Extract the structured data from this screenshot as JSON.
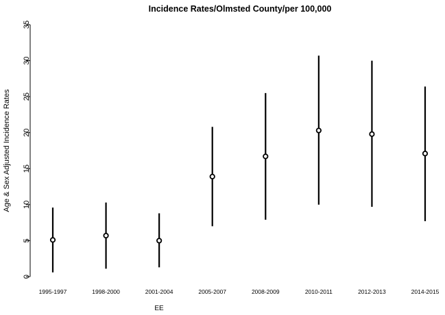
{
  "chart_data": {
    "type": "scatter",
    "title": "Incidence Rates/Olmsted County/per 100,000",
    "xlabel": "",
    "ylabel": "Age & Sex Adjusted Incidence Rates",
    "ylim": [
      0,
      35
    ],
    "yticks": [
      0,
      5,
      10,
      15,
      20,
      25,
      30,
      35
    ],
    "grid": false,
    "categories": [
      "1995-1997",
      "1998-2000",
      "2001-2004",
      "2005-2007",
      "2008-2009",
      "2010-2011",
      "2012-2013",
      "2014-2015"
    ],
    "values": [
      5.1,
      5.7,
      5.0,
      13.9,
      16.7,
      20.3,
      19.8,
      17.1
    ],
    "lower": [
      0.6,
      1.1,
      1.3,
      7.0,
      7.9,
      10.0,
      9.7,
      7.7
    ],
    "upper": [
      9.6,
      10.3,
      8.8,
      20.8,
      25.5,
      30.7,
      30.0,
      26.4
    ],
    "annotation": "EE"
  }
}
